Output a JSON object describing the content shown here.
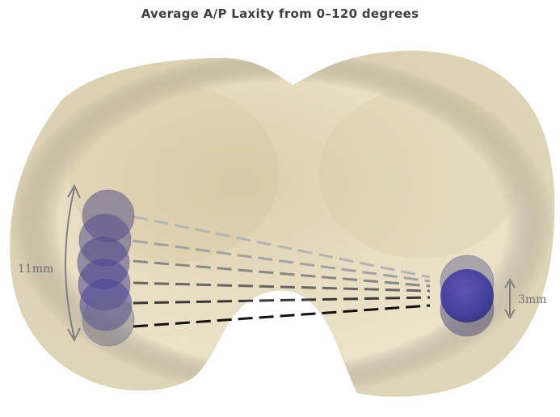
{
  "title": "Average A/P Laxity from 0–120 degrees",
  "left_range_label": "11mm",
  "right_range_label": "3mm",
  "colors": {
    "implant": "#ede3c7",
    "ball": "#5a5288",
    "ball_active": "#4b45a8",
    "arrow": "#808080"
  }
}
